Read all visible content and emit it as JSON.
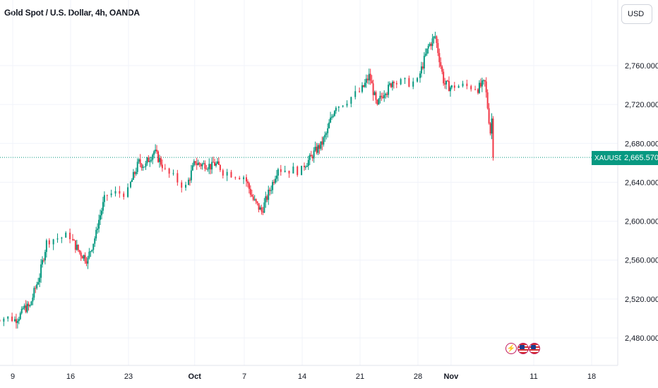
{
  "header": {
    "title": "Gold Spot / U.S. Dollar, 4h, OANDA",
    "currency_label": "USD"
  },
  "price_marker": {
    "symbol": "XAUUSD",
    "value_label": "2,665.570",
    "value": 2665.57,
    "color": "#089981"
  },
  "event_icons": [
    "lightning-icon",
    "us-flag-icon",
    "us-flag-icon"
  ],
  "colors": {
    "up": "#089981",
    "down": "#f23645"
  },
  "chart_data": {
    "type": "candlestick",
    "interval": "4h",
    "y_ticks": [
      2480,
      2520,
      2560,
      2600,
      2640,
      2680,
      2720,
      2760
    ],
    "y_tick_labels": [
      "2,480.000",
      "2,520.000",
      "2,560.000",
      "2,600.000",
      "2,640.000",
      "2,680.000",
      "2,720.000",
      "2,760.000"
    ],
    "y_range": [
      2468,
      2800
    ],
    "x_ticks": [
      {
        "label": "9",
        "date": "2024-09-09",
        "bold": false
      },
      {
        "label": "16",
        "date": "2024-09-16",
        "bold": false
      },
      {
        "label": "23",
        "date": "2024-09-23",
        "bold": false
      },
      {
        "label": "Oct",
        "date": "2024-10-01",
        "bold": true
      },
      {
        "label": "7",
        "date": "2024-10-07",
        "bold": false
      },
      {
        "label": "14",
        "date": "2024-10-14",
        "bold": false
      },
      {
        "label": "21",
        "date": "2024-10-21",
        "bold": false
      },
      {
        "label": "28",
        "date": "2024-10-28",
        "bold": false
      },
      {
        "label": "Nov",
        "date": "2024-11-01",
        "bold": true
      },
      {
        "label": "11",
        "date": "2024-11-11",
        "bold": false
      },
      {
        "label": "18",
        "date": "2024-11-18",
        "bold": false
      }
    ],
    "x_range": [
      "2024-09-07",
      "2024-11-22"
    ],
    "grid": true,
    "approx_close_series": [
      [
        "2024-09-06",
        2502
      ],
      [
        "2024-09-09",
        2500
      ],
      [
        "2024-09-10",
        2505
      ],
      [
        "2024-09-11",
        2512
      ],
      [
        "2024-09-12",
        2540
      ],
      [
        "2024-09-13",
        2578
      ],
      [
        "2024-09-16",
        2585
      ],
      [
        "2024-09-17",
        2568
      ],
      [
        "2024-09-18",
        2560
      ],
      [
        "2024-09-19",
        2587
      ],
      [
        "2024-09-20",
        2622
      ],
      [
        "2024-09-23",
        2630
      ],
      [
        "2024-09-24",
        2657
      ],
      [
        "2024-09-25",
        2657
      ],
      [
        "2024-09-26",
        2672
      ],
      [
        "2024-09-27",
        2658
      ],
      [
        "2024-09-30",
        2635
      ],
      [
        "2024-10-01",
        2662
      ],
      [
        "2024-10-02",
        2658
      ],
      [
        "2024-10-03",
        2656
      ],
      [
        "2024-10-04",
        2655
      ],
      [
        "2024-10-07",
        2646
      ],
      [
        "2024-10-08",
        2622
      ],
      [
        "2024-10-09",
        2610
      ],
      [
        "2024-10-10",
        2632
      ],
      [
        "2024-10-11",
        2656
      ],
      [
        "2024-10-14",
        2652
      ],
      [
        "2024-10-15",
        2665
      ],
      [
        "2024-10-16",
        2677
      ],
      [
        "2024-10-17",
        2693
      ],
      [
        "2024-10-18",
        2720
      ],
      [
        "2024-10-21",
        2733
      ],
      [
        "2024-10-22",
        2749
      ],
      [
        "2024-10-23",
        2716
      ],
      [
        "2024-10-24",
        2736
      ],
      [
        "2024-10-25",
        2747
      ],
      [
        "2024-10-28",
        2743
      ],
      [
        "2024-10-29",
        2775
      ],
      [
        "2024-10-30",
        2790
      ],
      [
        "2024-10-31",
        2745
      ],
      [
        "2024-11-01",
        2737
      ],
      [
        "2024-11-04",
        2738
      ],
      [
        "2024-11-05",
        2742
      ],
      [
        "2024-11-06",
        2665.57
      ]
    ]
  }
}
